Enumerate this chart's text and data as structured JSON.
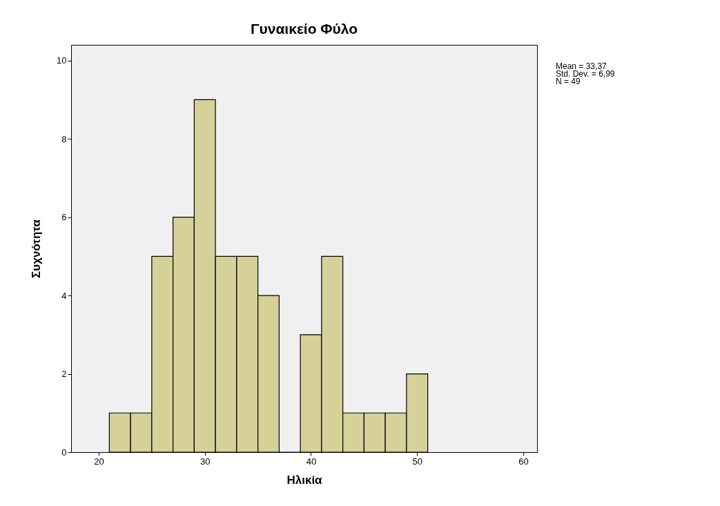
{
  "chart_data": {
    "type": "histogram",
    "title": "Γυναικείο Φύλο",
    "xlabel": "Ηλικία",
    "ylabel": "Συχνότητα",
    "bins": [
      21,
      23,
      25,
      27,
      29,
      31,
      33,
      35,
      37,
      39,
      41,
      43,
      45,
      47,
      49,
      51
    ],
    "values": [
      1,
      1,
      5,
      6,
      9,
      5,
      5,
      4,
      0,
      3,
      5,
      1,
      1,
      1,
      2
    ],
    "color": "#d5d199",
    "xlim": [
      17.4,
      61.3
    ],
    "xticks": [
      20,
      30,
      40,
      50,
      60
    ],
    "ylim": [
      0,
      10.4
    ],
    "yticks": [
      0,
      2,
      4,
      6,
      8,
      10
    ],
    "grid": false,
    "annotations": [
      "Mean = 33,37",
      "Std. Dev. = 6,99",
      "N = 49"
    ]
  }
}
